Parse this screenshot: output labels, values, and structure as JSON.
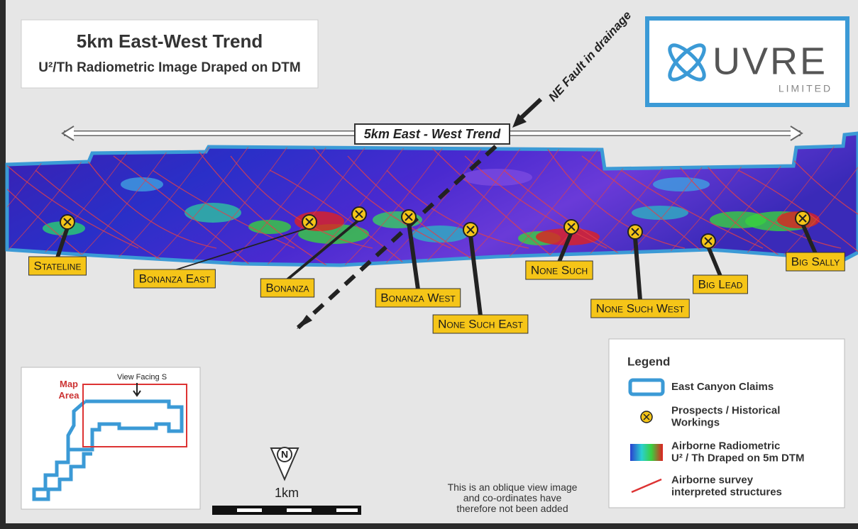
{
  "title": "5km East-West Trend",
  "subtitle": "U²/Th Radiometric Image Draped on DTM",
  "logo": {
    "name": "UVRE",
    "suffix": "LIMITED"
  },
  "trend_label": "5km East - West Trend",
  "fault_label": "NE Fault in drainage",
  "prospects": [
    {
      "label": "Stateline"
    },
    {
      "label": "Bonanza East"
    },
    {
      "label": "Bonanza"
    },
    {
      "label": "Bonanza West"
    },
    {
      "label": "None Such East"
    },
    {
      "label": "None Such"
    },
    {
      "label": "None Such West"
    },
    {
      "label": "Big Lead"
    },
    {
      "label": "Big Sally"
    }
  ],
  "inset": {
    "view_label": "View Facing S",
    "area_label": [
      "Map",
      "Area"
    ]
  },
  "scale": {
    "north": "N",
    "label": "1km"
  },
  "note": [
    "This is an oblique view image",
    "and co-ordinates have",
    "therefore not been added"
  ],
  "legend": {
    "title": "Legend",
    "items": [
      {
        "label": [
          "East Canyon Claims"
        ]
      },
      {
        "label": [
          "Prospects / Historical",
          "Workings"
        ]
      },
      {
        "label": [
          "Airborne Radiometric",
          "U² / Th Draped on 5m DTM"
        ]
      },
      {
        "label": [
          "Airborne survey",
          "interpreted structures"
        ]
      }
    ]
  }
}
